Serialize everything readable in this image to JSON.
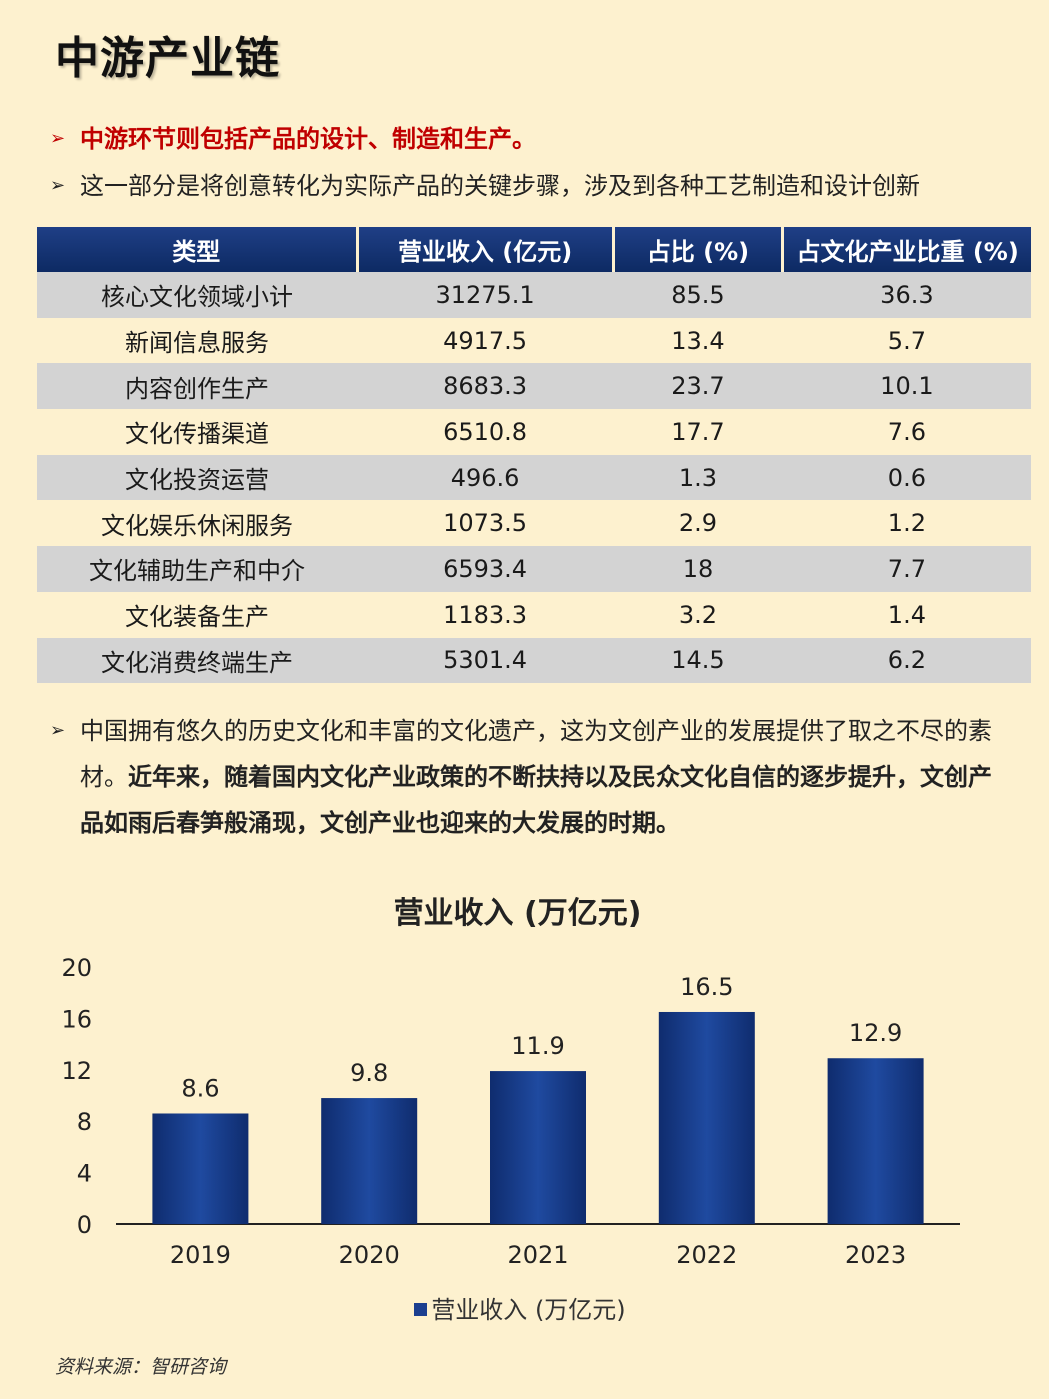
{
  "title": "中游产业链",
  "bullets": {
    "b1": "中游环节则包括产品的设计、制造和生产。",
    "b2": "这一部分是将创意转化为实际产品的关键步骤，涉及到各种工艺制造和设计创新",
    "b3_normal": "中国拥有悠久的历史文化和丰富的文化遗产，这为文创产业的发展提供了取之不尽的素材。",
    "b3_bold": "近年来，随着国内文化产业政策的不断扶持以及民众文化自信的逐步提升，文创产品如雨后春笋般涌现，文创产业也迎来的大发展的时期。",
    "arrow": "➢"
  },
  "table": {
    "headers": [
      "类型",
      "营业收入 (亿元)",
      "占比 (%)",
      "占文化产业比重 (%)"
    ],
    "rows": [
      [
        "核心文化领域小计",
        "31275.1",
        "85.5",
        "36.3"
      ],
      [
        "新闻信息服务",
        "4917.5",
        "13.4",
        "5.7"
      ],
      [
        "内容创作生产",
        "8683.3",
        "23.7",
        "10.1"
      ],
      [
        "文化传播渠道",
        "6510.8",
        "17.7",
        "7.6"
      ],
      [
        "文化投资运营",
        "496.6",
        "1.3",
        "0.6"
      ],
      [
        "文化娱乐休闲服务",
        "1073.5",
        "2.9",
        "1.2"
      ],
      [
        "文化辅助生产和中介",
        "6593.4",
        "18",
        "7.7"
      ],
      [
        "文化装备生产",
        "1183.3",
        "3.2",
        "1.4"
      ],
      [
        "文化消费终端生产",
        "5301.4",
        "14.5",
        "6.2"
      ]
    ]
  },
  "chart_data": {
    "type": "bar",
    "title": "营业收入 (万亿元)",
    "categories": [
      "2019",
      "2020",
      "2021",
      "2022",
      "2023"
    ],
    "series": [
      {
        "name": "营业收入 (万亿元)",
        "values": [
          8.6,
          9.8,
          11.9,
          16.5,
          12.9
        ]
      }
    ],
    "y_ticks": [
      "0",
      "4",
      "8",
      "12",
      "16",
      "20"
    ],
    "ylim": [
      0,
      20
    ],
    "xlabel": "",
    "ylabel": "",
    "grid": false,
    "legend": "bottom",
    "bar_color": "#1b3f8f"
  },
  "source": "资料来源：智研咨询"
}
